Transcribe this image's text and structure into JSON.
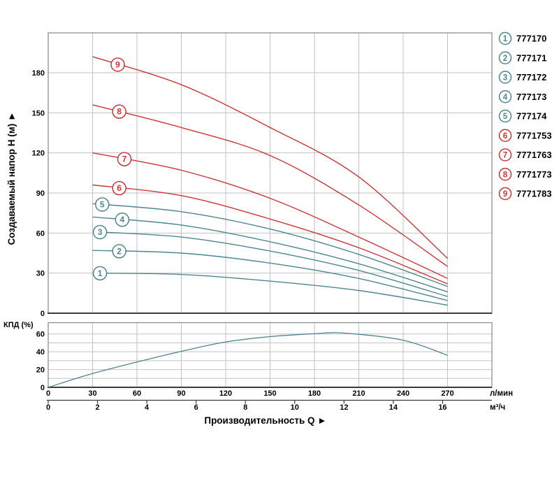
{
  "colors": {
    "teal": "#4e8691",
    "red": "#cd3535",
    "grid": "#c2c2c2",
    "border": "#8f8f8f",
    "axis_dark": "#3c3c3c",
    "text": "#000000"
  },
  "chart_data": [
    {
      "type": "line",
      "title": "",
      "ylabel": "Создаваемый напор H (м) ►",
      "xlabel": "Производительность Q ►",
      "ylim": [
        0,
        210
      ],
      "xlim_lmin": [
        0,
        300
      ],
      "grid": true,
      "y_ticks": [
        0,
        30,
        60,
        90,
        120,
        150,
        180
      ],
      "x_axis_primary": {
        "unit": "л/мин",
        "ticks": [
          0,
          30,
          60,
          90,
          120,
          150,
          180,
          210,
          240,
          270
        ]
      },
      "x_axis_secondary": {
        "unit": "м³/ч",
        "ticks": [
          0,
          2,
          4,
          6,
          8,
          10,
          12,
          14,
          16
        ]
      },
      "series": [
        {
          "id": "1",
          "model": "777170",
          "color": "teal",
          "marker_q": 35,
          "points": [
            [
              30,
              30
            ],
            [
              90,
              29
            ],
            [
              150,
              24
            ],
            [
              210,
              17
            ],
            [
              270,
              6
            ]
          ]
        },
        {
          "id": "2",
          "model": "777171",
          "color": "teal",
          "marker_q": 48,
          "points": [
            [
              30,
              47
            ],
            [
              90,
              45
            ],
            [
              150,
              37.5
            ],
            [
              210,
              26
            ],
            [
              270,
              9.5
            ]
          ]
        },
        {
          "id": "3",
          "model": "777172",
          "color": "teal",
          "marker_q": 35,
          "points": [
            [
              30,
              61
            ],
            [
              90,
              57
            ],
            [
              150,
              46.5
            ],
            [
              210,
              32
            ],
            [
              270,
              12.5
            ]
          ]
        },
        {
          "id": "4",
          "model": "777173",
          "color": "teal",
          "marker_q": 50,
          "points": [
            [
              30,
              72
            ],
            [
              90,
              66
            ],
            [
              150,
              53.5
            ],
            [
              210,
              37
            ],
            [
              270,
              16
            ]
          ]
        },
        {
          "id": "5",
          "model": "777174",
          "color": "teal",
          "marker_q": 36.5,
          "points": [
            [
              30,
              82
            ],
            [
              90,
              76
            ],
            [
              150,
              63
            ],
            [
              210,
              44
            ],
            [
              270,
              20
            ]
          ]
        },
        {
          "id": "6",
          "model": "7771753",
          "color": "red",
          "marker_q": 48,
          "points": [
            [
              30,
              96
            ],
            [
              90,
              88
            ],
            [
              150,
              70.5
            ],
            [
              210,
              49
            ],
            [
              270,
              22
            ]
          ]
        },
        {
          "id": "7",
          "model": "7771763",
          "color": "red",
          "marker_q": 51.5,
          "points": [
            [
              30,
              120
            ],
            [
              90,
              107
            ],
            [
              150,
              86
            ],
            [
              210,
              57
            ],
            [
              270,
              26
            ]
          ]
        },
        {
          "id": "8",
          "model": "7771773",
          "color": "red",
          "marker_q": 48,
          "points": [
            [
              30,
              156
            ],
            [
              90,
              139
            ],
            [
              150,
              118
            ],
            [
              210,
              81
            ],
            [
              270,
              35
            ]
          ]
        },
        {
          "id": "9",
          "model": "7771783",
          "color": "red",
          "marker_q": 47,
          "points": [
            [
              30,
              192
            ],
            [
              90,
              171
            ],
            [
              150,
              139
            ],
            [
              210,
              102
            ],
            [
              270,
              41
            ]
          ]
        }
      ]
    },
    {
      "type": "line",
      "ylabel": "КПД (%)",
      "ylim": [
        0,
        73
      ],
      "y_ticks": [
        0,
        20,
        40,
        60
      ],
      "grid": true,
      "series": [
        {
          "name": "КПД",
          "color": "teal",
          "points": [
            [
              0,
              0
            ],
            [
              30,
              15.5
            ],
            [
              60,
              28.5
            ],
            [
              90,
              40.5
            ],
            [
              120,
              51
            ],
            [
              150,
              57
            ],
            [
              180,
              60.3
            ],
            [
              200,
              61
            ],
            [
              240,
              53
            ],
            [
              270,
              36
            ]
          ]
        }
      ]
    }
  ],
  "legend": {
    "items": [
      {
        "num": "1",
        "model": "777170",
        "color": "teal"
      },
      {
        "num": "2",
        "model": "777171",
        "color": "teal"
      },
      {
        "num": "3",
        "model": "777172",
        "color": "teal"
      },
      {
        "num": "4",
        "model": "777173",
        "color": "teal"
      },
      {
        "num": "5",
        "model": "777174",
        "color": "teal"
      },
      {
        "num": "6",
        "model": "7771753",
        "color": "red"
      },
      {
        "num": "7",
        "model": "7771763",
        "color": "red"
      },
      {
        "num": "8",
        "model": "7771773",
        "color": "red"
      },
      {
        "num": "9",
        "model": "7771783",
        "color": "red"
      }
    ]
  }
}
